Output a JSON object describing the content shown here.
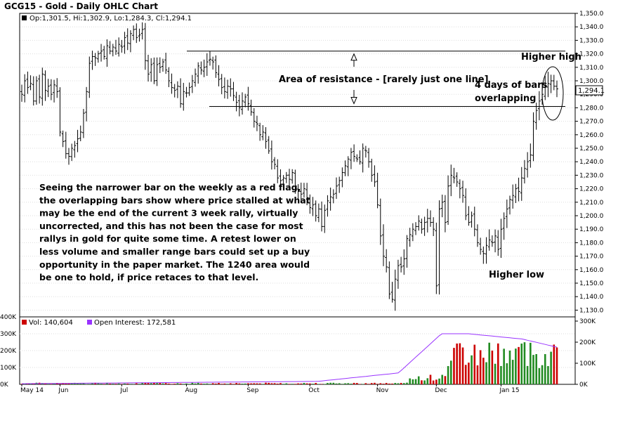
{
  "chart_data": [
    {
      "type": "ohlc",
      "title": "GCG15 - Gold - Daily OHLC Chart",
      "info": {
        "open": "Op:1,301.5",
        "high": "Hi:1,302.9",
        "low": "Lo:1,284.3",
        "close": "Cl:1,294.1"
      },
      "last_price_label": "1,294.1",
      "ylim": [
        1125,
        1350
      ],
      "yticks": [
        "1,130.0",
        "1,140.0",
        "1,150.0",
        "1,160.0",
        "1,170.0",
        "1,180.0",
        "1,190.0",
        "1,200.0",
        "1,210.0",
        "1,220.0",
        "1,230.0",
        "1,240.0",
        "1,250.0",
        "1,260.0",
        "1,270.0",
        "1,280.0",
        "1,290.0",
        "1,300.0",
        "1,310.0",
        "1,320.0",
        "1,330.0",
        "1,340.0",
        "1,350.0"
      ],
      "xticks": [
        "May 14",
        "Jun",
        "Jul",
        "Aug",
        "Sep",
        "Oct",
        "Nov",
        "Dec",
        "Jan 15"
      ],
      "resistance_band": [
        1322,
        1281
      ],
      "colors": {
        "bar": "#000000",
        "grid": "#cccccc",
        "background": "#ffffff"
      },
      "annotations": {
        "resistance": "Area of resistance - [rarely just one line]",
        "higher_high": "Higher high",
        "overlap_line1": "4 days of bars",
        "overlap_line2": "overlapping",
        "higher_low": "Higher low",
        "commentary": [
          "Seeing the narrower bar on the weekly as a red flag,",
          "the overlapping bars show where price stalled at what",
          "may be the end of the current 3 week rally, virtually",
          "uncorrected, and this has not been the case for most",
          "rallys in gold for quite some time.  A retest lower on",
          "less volume and smaller range bars could set up a buy",
          "opportunity in the paper market.  The 1240 area would",
          "be one to hold, if price retaces to that level."
        ]
      },
      "series": [
        {
          "months": [
            {
              "label": "May 14",
              "days": 13,
              "path": [
                1290,
                1300,
                1295,
                1298,
                1285,
                1300,
                1288,
                1305,
                1293,
                1296,
                1290,
                1297,
                1292
              ],
              "range": 8
            },
            {
              "label": "Jun",
              "days": 21,
              "path": [
                1262,
                1255,
                1246,
                1244,
                1250,
                1252,
                1257,
                1262,
                1276,
                1292,
                1313,
                1318,
                1317,
                1320,
                1322,
                1318,
                1326,
                1322,
                1325,
                1322,
                1327
              ],
              "range": 7
            },
            {
              "label": "Jul",
              "days": 22,
              "path": [
                1325,
                1332,
                1328,
                1335,
                1338,
                1332,
                1334,
                1338,
                1315,
                1305,
                1312,
                1300,
                1312,
                1310,
                1314,
                1308,
                1300,
                1295,
                1293,
                1296,
                1283,
                1292
              ],
              "range": 7
            },
            {
              "label": "Aug",
              "days": 21,
              "path": [
                1291,
                1295,
                1300,
                1305,
                1311,
                1308,
                1310,
                1314,
                1316,
                1314,
                1306,
                1301,
                1295,
                1292,
                1296,
                1294,
                1289,
                1284,
                1280,
                1285,
                1288
              ],
              "range": 7
            },
            {
              "label": "Sep",
              "days": 21,
              "path": [
                1283,
                1277,
                1270,
                1268,
                1260,
                1262,
                1255,
                1248,
                1240,
                1238,
                1228,
                1226,
                1228,
                1230,
                1227,
                1232,
                1220,
                1218,
                1216,
                1220,
                1212
              ],
              "range": 7
            },
            {
              "label": "Oct",
              "days": 23,
              "path": [
                1206,
                1208,
                1200,
                1205,
                1192,
                1204,
                1211,
                1214,
                1216,
                1222,
                1226,
                1232,
                1237,
                1242,
                1247,
                1244,
                1242,
                1240,
                1250,
                1248,
                1240,
                1230,
                1225
              ],
              "range": 7
            },
            {
              "label": "Nov",
              "days": 20,
              "path": [
                1208,
                1185,
                1170,
                1162,
                1142,
                1138,
                1153,
                1163,
                1162,
                1168,
                1183,
                1186,
                1190,
                1192,
                1196,
                1190,
                1195,
                1198,
                1195,
                1190
              ],
              "range": 8
            },
            {
              "label": "Dec",
              "days": 22,
              "path": [
                1148,
                1205,
                1210,
                1195,
                1222,
                1230,
                1228,
                1225,
                1220,
                1215,
                1200,
                1195,
                1200,
                1190,
                1180,
                1175,
                1172,
                1178,
                1182,
                1180,
                1185,
                1175
              ],
              "range": 8
            },
            {
              "label": "Jan 15",
              "days": 20,
              "path": [
                1190,
                1198,
                1205,
                1212,
                1215,
                1220,
                1218,
                1228,
                1235,
                1240,
                1245,
                1270,
                1278,
                1285,
                1290,
                1296,
                1298,
                1300,
                1296,
                1294
              ],
              "range": 9
            }
          ]
        },
        {
          "name": "Vol: 140,604",
          "color": "#cc0000",
          "scale": "left",
          "yticks": [
            "0K",
            "100K",
            "200K",
            "300K",
            "400K"
          ],
          "ylim": [
            0,
            400000
          ]
        },
        {
          "name": "Open Interest: 172,581",
          "color": "#9933ff",
          "scale": "right",
          "yticks": [
            "0K",
            "100K",
            "200K",
            "300K"
          ],
          "ylim": [
            0,
            320000
          ]
        }
      ]
    }
  ]
}
